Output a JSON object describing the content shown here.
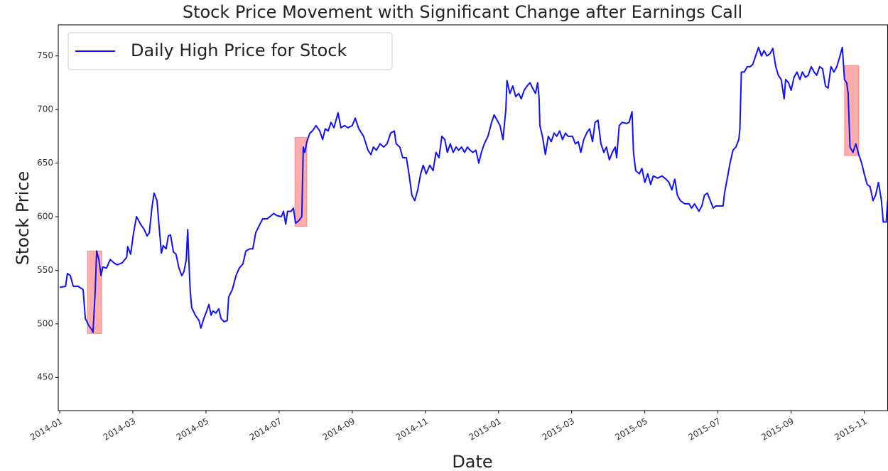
{
  "chart_data": {
    "type": "line",
    "title": "Stock Price Movement with Significant Change after Earnings Call",
    "xlabel": "Date",
    "ylabel": "Stock Price",
    "legend": "upper left",
    "xlim": [
      -0.04,
      22.64
    ],
    "ylim": [
      419,
      779
    ],
    "yticks": [
      450,
      500,
      550,
      600,
      650,
      700,
      750
    ],
    "xticks": [
      {
        "value": 0,
        "label": "2014-01"
      },
      {
        "value": 2,
        "label": "2014-03"
      },
      {
        "value": 4,
        "label": "2014-05"
      },
      {
        "value": 6,
        "label": "2014-07"
      },
      {
        "value": 8,
        "label": "2014-09"
      },
      {
        "value": 10,
        "label": "2014-11"
      },
      {
        "value": 12,
        "label": "2015-01"
      },
      {
        "value": 14,
        "label": "2015-03"
      },
      {
        "value": 16,
        "label": "2015-05"
      },
      {
        "value": 18,
        "label": "2015-07"
      },
      {
        "value": 20,
        "label": "2015-09"
      },
      {
        "value": 22,
        "label": "2015-11"
      }
    ],
    "x": [
      0.0,
      0.16,
      0.21,
      0.29,
      0.37,
      0.5,
      0.64,
      0.7,
      0.8,
      0.87,
      0.91,
      0.97,
      1.01,
      1.07,
      1.13,
      1.18,
      1.28,
      1.38,
      1.48,
      1.57,
      1.71,
      1.83,
      1.86,
      1.94,
      2.02,
      2.1,
      2.21,
      2.31,
      2.39,
      2.45,
      2.52,
      2.58,
      2.66,
      2.72,
      2.78,
      2.83,
      2.91,
      2.97,
      3.03,
      3.11,
      3.18,
      3.26,
      3.34,
      3.4,
      3.46,
      3.5,
      3.53,
      3.57,
      3.61,
      3.71,
      3.81,
      3.86,
      3.94,
      4.02,
      4.08,
      4.14,
      4.19,
      4.27,
      4.35,
      4.41,
      4.49,
      4.58,
      4.62,
      4.72,
      4.82,
      4.91,
      5.01,
      5.09,
      5.2,
      5.28,
      5.36,
      5.46,
      5.55,
      5.67,
      5.75,
      5.85,
      5.94,
      6.06,
      6.12,
      6.18,
      6.23,
      6.33,
      6.39,
      6.45,
      6.53,
      6.62,
      6.66,
      6.7,
      6.76,
      6.84,
      6.91,
      7.01,
      7.11,
      7.19,
      7.26,
      7.34,
      7.42,
      7.5,
      7.61,
      7.69,
      7.79,
      7.88,
      8.0,
      8.08,
      8.18,
      8.31,
      8.43,
      8.51,
      8.58,
      8.66,
      8.76,
      8.86,
      8.95,
      9.05,
      9.15,
      9.2,
      9.3,
      9.38,
      9.48,
      9.55,
      9.63,
      9.71,
      9.79,
      9.87,
      9.94,
      10.02,
      10.12,
      10.21,
      10.29,
      10.37,
      10.45,
      10.53,
      10.6,
      10.68,
      10.76,
      10.84,
      10.91,
      10.99,
      11.07,
      11.15,
      11.22,
      11.3,
      11.38,
      11.46,
      11.53,
      11.61,
      11.71,
      11.81,
      11.88,
      11.96,
      12.04,
      12.12,
      12.2,
      12.23,
      12.31,
      12.39,
      12.47,
      12.55,
      12.62,
      12.7,
      12.78,
      12.86,
      12.93,
      13.01,
      13.07,
      13.11,
      13.13,
      13.2,
      13.28,
      13.36,
      13.44,
      13.52,
      13.59,
      13.67,
      13.75,
      13.83,
      13.9,
      14.02,
      14.1,
      14.18,
      14.25,
      14.33,
      14.41,
      14.49,
      14.57,
      14.64,
      14.72,
      14.8,
      14.88,
      14.95,
      15.03,
      15.11,
      15.19,
      15.23,
      15.3,
      15.38,
      15.5,
      15.57,
      15.65,
      15.69,
      15.75,
      15.85,
      15.92,
      16.0,
      16.08,
      16.16,
      16.23,
      16.35,
      16.47,
      16.58,
      16.66,
      16.74,
      16.82,
      16.89,
      16.97,
      17.09,
      17.21,
      17.28,
      17.36,
      17.48,
      17.56,
      17.63,
      17.71,
      17.79,
      17.87,
      17.94,
      18.06,
      18.14,
      18.18,
      18.25,
      18.33,
      18.41,
      18.49,
      18.57,
      18.6,
      18.64,
      18.72,
      18.8,
      18.88,
      18.95,
      19.03,
      19.11,
      19.19,
      19.26,
      19.34,
      19.42,
      19.5,
      19.58,
      19.65,
      19.73,
      19.81,
      19.85,
      19.93,
      20.0,
      20.08,
      20.16,
      20.24,
      20.31,
      20.39,
      20.47,
      20.55,
      20.63,
      20.7,
      20.78,
      20.86,
      20.94,
      21.01,
      21.09,
      21.17,
      21.25,
      21.32,
      21.4,
      21.46,
      21.52,
      21.56,
      21.61,
      21.69,
      21.77,
      21.85,
      21.93,
      22.0,
      22.08,
      22.16,
      22.24,
      22.31,
      22.39,
      22.47,
      22.52,
      22.6,
      22.64
    ],
    "series": [
      {
        "name": "Daily High Price for Stock",
        "color": "#1010ff",
        "values": [
          534,
          535,
          547,
          545,
          535,
          535,
          532,
          505,
          498,
          495,
          492,
          530,
          568,
          560,
          545,
          553,
          552,
          560,
          557,
          555,
          557,
          562,
          572,
          565,
          585,
          600,
          593,
          588,
          582,
          585,
          608,
          622,
          615,
          590,
          566,
          573,
          570,
          582,
          583,
          567,
          565,
          552,
          545,
          549,
          560,
          588,
          560,
          530,
          515,
          508,
          503,
          496,
          505,
          512,
          518,
          508,
          512,
          510,
          514,
          505,
          502,
          503,
          525,
          532,
          545,
          552,
          556,
          568,
          570,
          570,
          585,
          592,
          598,
          598,
          600,
          603,
          601,
          600,
          605,
          593,
          605,
          605,
          608,
          594,
          596,
          600,
          665,
          660,
          670,
          678,
          680,
          685,
          680,
          672,
          682,
          680,
          688,
          683,
          697,
          683,
          685,
          683,
          685,
          692,
          682,
          675,
          662,
          658,
          665,
          662,
          668,
          665,
          668,
          678,
          680,
          668,
          665,
          655,
          655,
          640,
          620,
          615,
          625,
          640,
          648,
          640,
          648,
          643,
          660,
          655,
          675,
          672,
          660,
          668,
          660,
          665,
          662,
          665,
          660,
          665,
          662,
          660,
          662,
          650,
          660,
          668,
          675,
          688,
          695,
          690,
          685,
          672,
          700,
          727,
          715,
          722,
          712,
          715,
          710,
          718,
          722,
          725,
          720,
          715,
          725,
          710,
          685,
          675,
          658,
          675,
          670,
          678,
          675,
          680,
          672,
          678,
          675,
          675,
          668,
          670,
          660,
          672,
          678,
          682,
          670,
          688,
          690,
          668,
          660,
          665,
          653,
          660,
          665,
          655,
          685,
          688,
          687,
          688,
          698,
          660,
          643,
          640,
          645,
          632,
          640,
          630,
          638,
          636,
          638,
          635,
          632,
          625,
          635,
          620,
          615,
          612,
          612,
          608,
          612,
          605,
          610,
          620,
          622,
          615,
          608,
          610,
          610,
          610,
          622,
          635,
          650,
          662,
          665,
          672,
          682,
          735,
          735,
          740,
          740,
          742,
          750,
          758,
          750,
          755,
          750,
          752,
          757,
          740,
          732,
          728,
          710,
          728,
          725,
          718,
          730,
          735,
          728,
          735,
          730,
          732,
          740,
          735,
          732,
          740,
          738,
          722,
          720,
          740,
          735,
          740,
          748,
          758,
          728,
          725,
          715,
          665,
          660,
          668,
          658,
          650,
          640,
          630,
          628,
          615,
          620,
          632,
          615,
          595,
          595,
          615
        ]
      }
    ],
    "highlights": [
      {
        "x": [
          0.76,
          1.15
        ],
        "y": [
          491,
          568
        ]
      },
      {
        "x": [
          6.43,
          6.76
        ],
        "y": [
          591,
          674
        ]
      },
      {
        "x": [
          21.46,
          21.85
        ],
        "y": [
          657,
          741
        ]
      }
    ],
    "highlight_color": "#ff0000"
  }
}
